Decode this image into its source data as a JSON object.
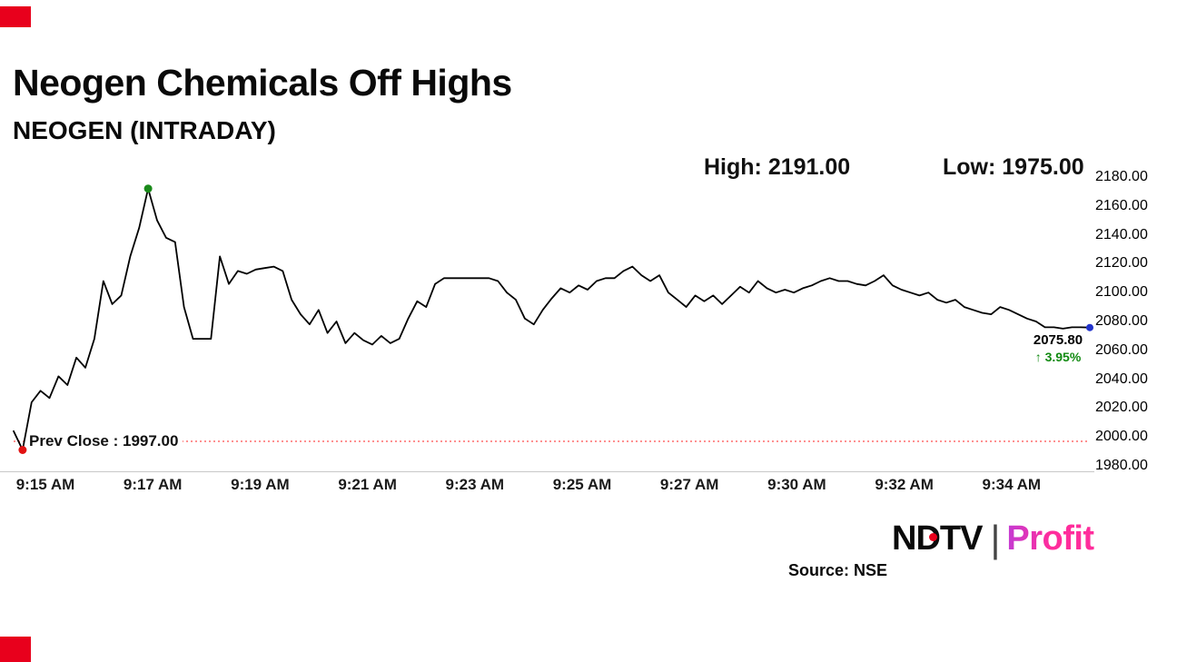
{
  "header": {
    "title": "Neogen Chemicals Off Highs",
    "subtitle": "NEOGEN (INTRADAY)",
    "high_label": "High: 2191.00",
    "low_label": "Low: 1975.00"
  },
  "footer": {
    "source": "Source: NSE",
    "logo_ndtv": "NDTV",
    "logo_separator": "|",
    "logo_profit": "Profit"
  },
  "chart_data": {
    "type": "line",
    "title": "Neogen Chemicals Off Highs",
    "subtitle": "NEOGEN (INTRADAY)",
    "high": 2191.0,
    "low": 1975.0,
    "prev_close": 1997.0,
    "prev_close_label": "Prev Close : 1997.00",
    "last_price": 2075.8,
    "last_price_label": "2075.80",
    "change_label": "↑ 3.95%",
    "x_labels": [
      "9:15 AM",
      "9:17 AM",
      "9:19 AM",
      "9:21 AM",
      "9:23 AM",
      "9:25 AM",
      "9:27 AM",
      "9:30 AM",
      "9:32 AM",
      "9:34 AM"
    ],
    "y_ticks": [
      2180,
      2160,
      2140,
      2120,
      2100,
      2080,
      2060,
      2040,
      2020,
      2000,
      1980
    ],
    "ylim": [
      1980,
      2180
    ],
    "grid": false,
    "legend_position": "none",
    "values": [
      2004,
      1991,
      2024,
      2032,
      2027,
      2042,
      2036,
      2055,
      2048,
      2068,
      2108,
      2092,
      2098,
      2125,
      2145,
      2172,
      2150,
      2138,
      2135,
      2090,
      2068,
      2068,
      2068,
      2125,
      2106,
      2115,
      2113,
      2116,
      2117,
      2118,
      2115,
      2095,
      2085,
      2078,
      2088,
      2072,
      2080,
      2065,
      2072,
      2067,
      2064,
      2070,
      2065,
      2068,
      2082,
      2094,
      2090,
      2106,
      2110,
      2110,
      2110,
      2110,
      2110,
      2110,
      2108,
      2100,
      2095,
      2082,
      2078,
      2088,
      2096,
      2103,
      2100,
      2105,
      2102,
      2108,
      2110,
      2110,
      2115,
      2118,
      2112,
      2108,
      2112,
      2100,
      2095,
      2090,
      2098,
      2094,
      2098,
      2092,
      2098,
      2104,
      2100,
      2108,
      2103,
      2100,
      2102,
      2100,
      2103,
      2105,
      2108,
      2110,
      2108,
      2108,
      2106,
      2105,
      2108,
      2112,
      2105,
      2102,
      2100,
      2098,
      2100,
      2095,
      2093,
      2095,
      2090,
      2088,
      2086,
      2085,
      2090,
      2088,
      2085,
      2082,
      2080,
      2076,
      2076,
      2075,
      2076,
      2076,
      2075.8
    ],
    "colors": {
      "line": "#000000",
      "prev_close_line": "#ff2222",
      "change_up": "#118a11",
      "high_dot": "#1a8a1a",
      "low_dot": "#e21212",
      "last_dot": "#2233cc",
      "accent_red": "#e8001c",
      "axis": "#c9c9c9"
    }
  }
}
